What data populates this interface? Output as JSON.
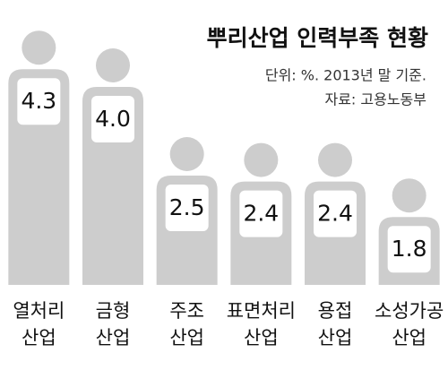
{
  "chart_data": {
    "type": "pictogram",
    "title": "뿌리산업 인력부족 현황",
    "subtitle": "단위: %. 2013년 말 기준.",
    "source": "자료: 고용노동부",
    "categories": [
      [
        "열처리",
        "산업"
      ],
      [
        "금형",
        "산업"
      ],
      [
        "주조",
        "산업"
      ],
      [
        "표면처리",
        "산업"
      ],
      [
        "용접",
        "산업"
      ],
      [
        "소성가공",
        "산업"
      ]
    ],
    "values": [
      4.3,
      4,
      2.5,
      2.4,
      2.4,
      1.8
    ],
    "value_labels": [
      "4.3",
      "4.0",
      "2.5",
      "2.4",
      "2.4",
      "1.8"
    ],
    "color": "#cdcdcd"
  }
}
